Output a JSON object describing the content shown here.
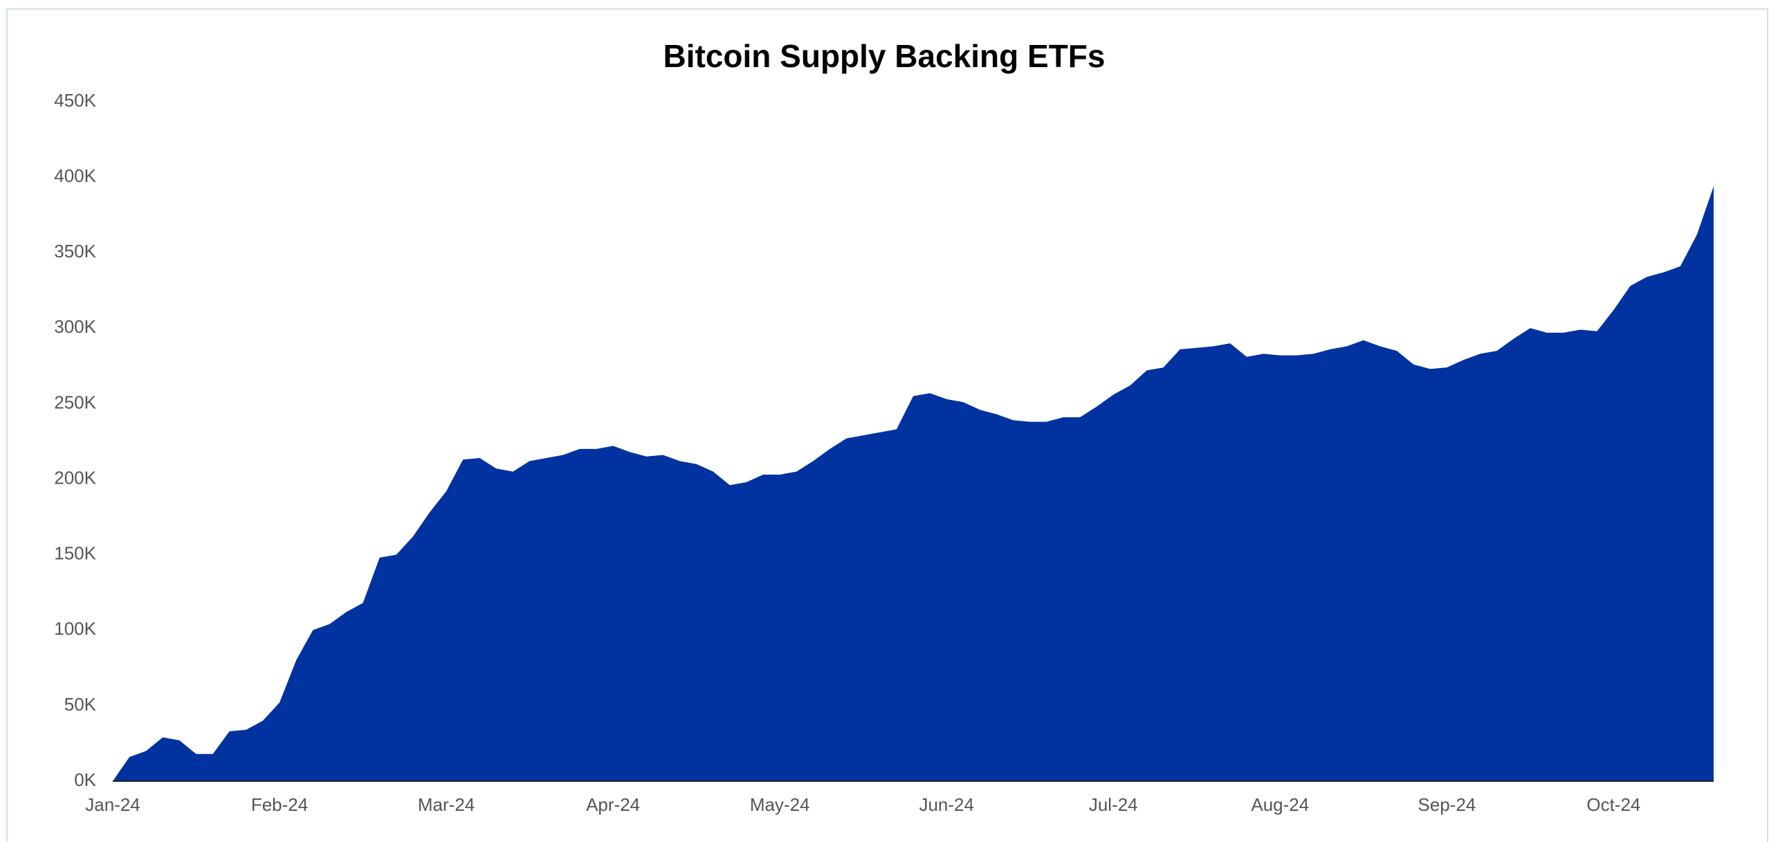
{
  "chart_data": {
    "type": "area",
    "title": "Bitcoin Supply Backing ETFs",
    "color": "#0033a0",
    "grid": false,
    "categories": [
      "Jan-24",
      null,
      null,
      null,
      null,
      null,
      null,
      null,
      null,
      null,
      "Feb-24",
      null,
      null,
      null,
      null,
      null,
      null,
      null,
      null,
      null,
      "Mar-24",
      null,
      null,
      null,
      null,
      null,
      null,
      null,
      null,
      null,
      "Apr-24",
      null,
      null,
      null,
      null,
      null,
      null,
      null,
      null,
      null,
      "May-24",
      null,
      null,
      null,
      null,
      null,
      null,
      null,
      null,
      null,
      "Jun-24",
      null,
      null,
      null,
      null,
      null,
      null,
      null,
      null,
      null,
      "Jul-24",
      null,
      null,
      null,
      null,
      null,
      null,
      null,
      null,
      null,
      "Aug-24",
      null,
      null,
      null,
      null,
      null,
      null,
      null,
      null,
      null,
      "Sep-24",
      null,
      null,
      null,
      null,
      null,
      null,
      null,
      null,
      null,
      "Oct-24",
      null,
      null,
      null,
      null,
      null,
      null
    ],
    "values": [
      0,
      16000,
      20000,
      29000,
      27000,
      18000,
      18000,
      33000,
      34000,
      40000,
      52000,
      80000,
      100000,
      104000,
      112000,
      118000,
      148000,
      150000,
      162000,
      178000,
      192000,
      213000,
      214000,
      207000,
      205000,
      212000,
      214000,
      216000,
      220000,
      220000,
      222000,
      218000,
      215000,
      216000,
      212000,
      210000,
      205000,
      196000,
      198000,
      203000,
      203000,
      205000,
      212000,
      220000,
      227000,
      229000,
      231000,
      233000,
      255000,
      257000,
      253000,
      251000,
      246000,
      243000,
      239000,
      238000,
      238000,
      241000,
      241000,
      248000,
      256000,
      262000,
      272000,
      274000,
      286000,
      287000,
      288000,
      290000,
      281000,
      283000,
      282000,
      282000,
      283000,
      286000,
      288000,
      292000,
      288000,
      285000,
      276000,
      273000,
      274000,
      279000,
      283000,
      285000,
      293000,
      300000,
      297000,
      297000,
      299000,
      298000,
      312000,
      328000,
      334000,
      337000,
      341000,
      362000,
      394000
    ],
    "ylim": [
      0,
      450000
    ],
    "yticks": [
      {
        "value": 0,
        "label": "0K"
      },
      {
        "value": 50000,
        "label": "50K"
      },
      {
        "value": 100000,
        "label": "100K"
      },
      {
        "value": 150000,
        "label": "150K"
      },
      {
        "value": 200000,
        "label": "200K"
      },
      {
        "value": 250000,
        "label": "250K"
      },
      {
        "value": 300000,
        "label": "300K"
      },
      {
        "value": 350000,
        "label": "350K"
      },
      {
        "value": 400000,
        "label": "400K"
      },
      {
        "value": 450000,
        "label": "450K"
      }
    ]
  }
}
